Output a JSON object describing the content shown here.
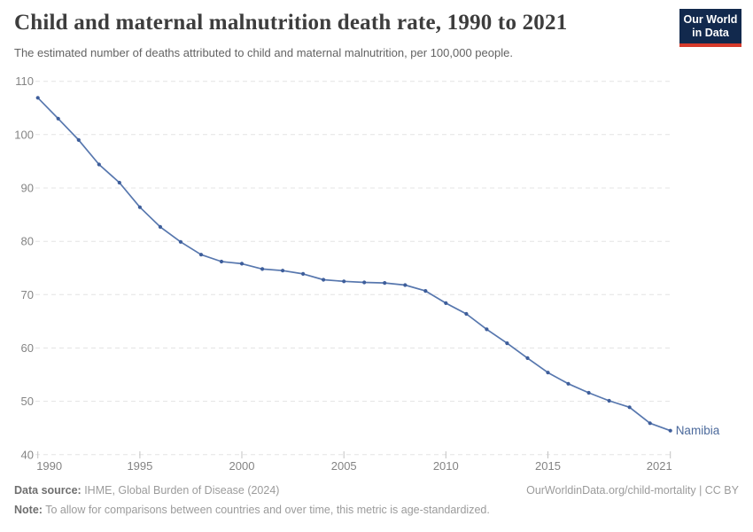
{
  "header": {
    "title": "Child and maternal malnutrition death rate, 1990 to 2021",
    "subtitle": "The estimated number of deaths attributed to child and maternal malnutrition, per 100,000 people."
  },
  "logo": {
    "line1": "Our World",
    "line2": "in Data",
    "bg_color": "#12294d",
    "accent_color": "#d63a2b"
  },
  "chart_data": {
    "type": "line",
    "title": "Child and maternal malnutrition death rate, 1990 to 2021",
    "x": [
      1990,
      1991,
      1992,
      1993,
      1994,
      1995,
      1996,
      1997,
      1998,
      1999,
      2000,
      2001,
      2002,
      2003,
      2004,
      2005,
      2006,
      2007,
      2008,
      2009,
      2010,
      2011,
      2012,
      2013,
      2014,
      2015,
      2016,
      2017,
      2018,
      2019,
      2020,
      2021
    ],
    "series": [
      {
        "name": "Namibia",
        "values": [
          106.9,
          103.0,
          99.0,
          94.4,
          91.0,
          86.4,
          82.7,
          79.9,
          77.5,
          76.2,
          75.8,
          74.8,
          74.5,
          73.9,
          72.8,
          72.5,
          72.3,
          72.2,
          71.8,
          70.7,
          68.4,
          66.4,
          63.5,
          60.9,
          58.1,
          55.4,
          53.3,
          51.6,
          50.1,
          48.9,
          45.9,
          44.5
        ]
      }
    ],
    "ylim": [
      40,
      110
    ],
    "yticks": [
      40,
      50,
      60,
      70,
      80,
      90,
      100,
      110
    ],
    "xticks": [
      1990,
      1995,
      2000,
      2005,
      2010,
      2015,
      2021
    ],
    "grid": "horizontal-dashed",
    "legend_position": "end-of-line-label",
    "end_label": "Namibia",
    "line_color": "#5777ae",
    "marker_color": "#3e5e9b",
    "end_label_color": "#4c6a9c",
    "grid_color": "#e4e4e4",
    "tick_label_color": "#848484"
  },
  "footer": {
    "source_label": "Data source:",
    "source_text": " IHME, Global Burden of Disease (2024)",
    "note_label": "Note:",
    "note_text": " To allow for comparisons between countries and over time, this metric is age-standardized.",
    "link": "OurWorldinData.org/child-mortality | CC BY"
  }
}
